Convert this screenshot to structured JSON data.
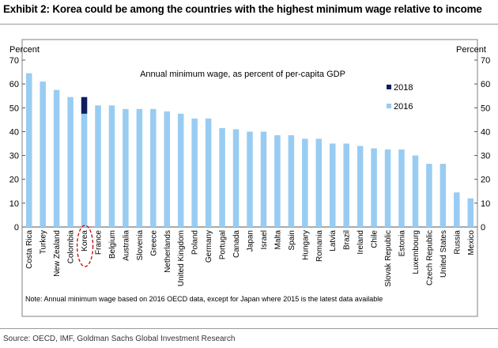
{
  "header": {
    "title": "Exhibit 2: Korea could be among the countries with the highest minimum wage relative to income"
  },
  "footer": {
    "source": "Source: OECD, IMF, Goldman Sachs Global Investment Research"
  },
  "chart_data": {
    "type": "bar",
    "title": "Annual minimum wage, as percent of per-capita GDP",
    "ylabel_left": "Percent",
    "ylabel_right": "Percent",
    "ylim": [
      0,
      70
    ],
    "yticks": [
      0,
      10,
      20,
      30,
      40,
      50,
      60,
      70
    ],
    "grid": false,
    "legend_placement": "top-center",
    "categories": [
      "Costa Rica",
      "Turkey",
      "New Zealand",
      "Colombia",
      "Korea",
      "France",
      "Belgium",
      "Australia",
      "Slovenia",
      "Greece",
      "Netherlands",
      "United Kingdom",
      "Poland",
      "Germany",
      "Portugal",
      "Canada",
      "Japan",
      "Israel",
      "Malta",
      "Spain",
      "Hungary",
      "Romania",
      "Latvia",
      "Brazil",
      "Ireland",
      "Chile",
      "Slovak Republic",
      "Estonia",
      "Luxembourg",
      "Czech Republic",
      "United States",
      "Russia",
      "Mexico"
    ],
    "series": [
      {
        "name": "2016",
        "color": "#99ccf2",
        "values": [
          64.5,
          61,
          57.5,
          54.5,
          47.5,
          51,
          51,
          49.5,
          49.5,
          49.5,
          48.5,
          47.5,
          45.5,
          45.5,
          41.5,
          41,
          40,
          40,
          38.5,
          38.5,
          37,
          37,
          35,
          35,
          34,
          33,
          32.5,
          32.5,
          30,
          26.5,
          26.5,
          14.5,
          12
        ]
      },
      {
        "name": "2018",
        "color": "#0d1f5c",
        "values": [
          null,
          null,
          null,
          null,
          54.5,
          null,
          null,
          null,
          null,
          null,
          null,
          null,
          null,
          null,
          null,
          null,
          null,
          null,
          null,
          null,
          null,
          null,
          null,
          null,
          null,
          null,
          null,
          null,
          null,
          null,
          null,
          null,
          null
        ]
      }
    ],
    "highlight_category": "Korea",
    "note": "Note: Annual minimum wage based on 2016 OECD data, except for Japan where 2015 is the latest data available"
  }
}
